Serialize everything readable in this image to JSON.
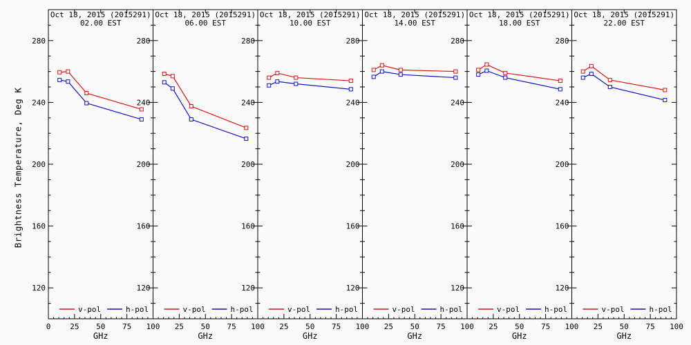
{
  "figure": {
    "ylabel": "Brightness Temperature, Deg K",
    "xlabel": "GHz",
    "background": "#fafafa",
    "axis_color": "#000000",
    "legend": [
      {
        "label": "v-pol",
        "color": "#dd1111"
      },
      {
        "label": "h-pol",
        "color": "#1111cc"
      }
    ]
  },
  "chart_data": {
    "type": "line",
    "date_label": "Oct 18, 2015 (2015291)",
    "xlabel": "GHz",
    "ylabel": "Brightness Temperature, Deg K",
    "x": [
      10.7,
      18.7,
      36.5,
      89
    ],
    "xlim": [
      0,
      100
    ],
    "ylim": [
      100,
      300
    ],
    "x_major_ticks": [
      0,
      25,
      50,
      75,
      100
    ],
    "x_minor_step": 5,
    "y_major_ticks": [
      120,
      160,
      200,
      240,
      280
    ],
    "y_minor_step": 10,
    "grid": false,
    "legend_position": "bottom-inside-each-panel",
    "series_colors": {
      "v-pol": "#dd1111",
      "h-pol": "#1111cc"
    },
    "panels": [
      {
        "time": "02.00 EST",
        "series": [
          {
            "name": "v-pol",
            "values": [
              259.5,
              260.0,
              246.0,
              235.5
            ]
          },
          {
            "name": "h-pol",
            "values": [
              254.5,
              253.5,
              239.5,
              229.0
            ]
          }
        ]
      },
      {
        "time": "06.00 EST",
        "series": [
          {
            "name": "v-pol",
            "values": [
              258.5,
              257.0,
              237.5,
              223.5
            ]
          },
          {
            "name": "h-pol",
            "values": [
              253.0,
              249.0,
              229.0,
              216.5
            ]
          }
        ]
      },
      {
        "time": "10.00 EST",
        "series": [
          {
            "name": "v-pol",
            "values": [
              256.0,
              259.0,
              256.0,
              254.0
            ]
          },
          {
            "name": "h-pol",
            "values": [
              251.0,
              253.5,
              252.0,
              248.5
            ]
          }
        ]
      },
      {
        "time": "14.00 EST",
        "series": [
          {
            "name": "v-pol",
            "values": [
              261.0,
              264.0,
              261.0,
              260.0
            ]
          },
          {
            "name": "h-pol",
            "values": [
              256.5,
              260.0,
              258.0,
              256.0
            ]
          }
        ]
      },
      {
        "time": "18.00 EST",
        "series": [
          {
            "name": "v-pol",
            "values": [
              261.0,
              264.5,
              259.0,
              254.0
            ]
          },
          {
            "name": "h-pol",
            "values": [
              258.0,
              260.5,
              256.0,
              248.5
            ]
          }
        ]
      },
      {
        "time": "22.00 EST",
        "series": [
          {
            "name": "v-pol",
            "values": [
              260.0,
              263.5,
              254.5,
              248.0
            ]
          },
          {
            "name": "h-pol",
            "values": [
              256.0,
              258.5,
              250.0,
              241.5
            ]
          }
        ]
      }
    ]
  }
}
